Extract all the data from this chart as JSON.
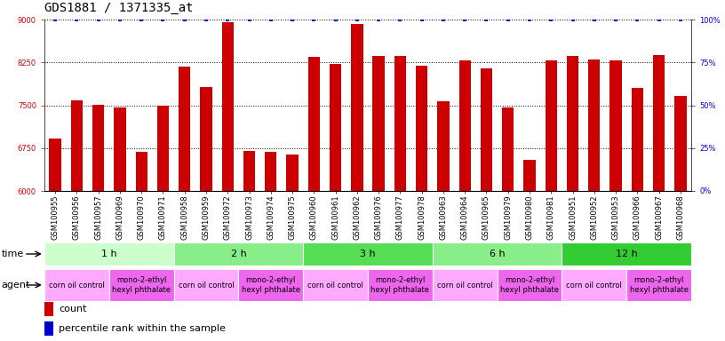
{
  "title": "GDS1881 / 1371335_at",
  "samples": [
    "GSM100955",
    "GSM100956",
    "GSM100957",
    "GSM100969",
    "GSM100970",
    "GSM100971",
    "GSM100958",
    "GSM100959",
    "GSM100972",
    "GSM100973",
    "GSM100974",
    "GSM100975",
    "GSM100960",
    "GSM100961",
    "GSM100962",
    "GSM100976",
    "GSM100977",
    "GSM100978",
    "GSM100963",
    "GSM100964",
    "GSM100965",
    "GSM100979",
    "GSM100980",
    "GSM100981",
    "GSM100951",
    "GSM100952",
    "GSM100953",
    "GSM100966",
    "GSM100967",
    "GSM100968"
  ],
  "values": [
    6920,
    7580,
    7510,
    7460,
    6680,
    7490,
    8170,
    7820,
    8960,
    6700,
    6690,
    6640,
    8350,
    8220,
    8930,
    8370,
    8370,
    8190,
    7570,
    8290,
    8150,
    7460,
    6540,
    8280,
    8360,
    8300,
    8290,
    7810,
    8380,
    7660
  ],
  "percentile_values": [
    100,
    100,
    100,
    100,
    100,
    100,
    100,
    100,
    100,
    100,
    100,
    100,
    100,
    100,
    100,
    100,
    100,
    100,
    100,
    100,
    100,
    100,
    100,
    100,
    100,
    100,
    100,
    100,
    100,
    100
  ],
  "bar_color": "#cc0000",
  "percentile_color": "#0000cc",
  "ylim_left": [
    6000,
    9000
  ],
  "ylim_right": [
    0,
    100
  ],
  "yticks_left": [
    6000,
    6750,
    7500,
    8250,
    9000
  ],
  "yticks_right": [
    0,
    25,
    50,
    75,
    100
  ],
  "time_groups": [
    {
      "label": "1 h",
      "start": 0,
      "end": 6,
      "color": "#ccffcc"
    },
    {
      "label": "2 h",
      "start": 6,
      "end": 12,
      "color": "#88ee88"
    },
    {
      "label": "3 h",
      "start": 12,
      "end": 18,
      "color": "#55dd55"
    },
    {
      "label": "6 h",
      "start": 18,
      "end": 24,
      "color": "#88ee88"
    },
    {
      "label": "12 h",
      "start": 24,
      "end": 30,
      "color": "#33cc33"
    }
  ],
  "agent_groups": [
    {
      "label": "corn oil control",
      "start": 0,
      "end": 3,
      "color": "#ffaaff"
    },
    {
      "label": "mono-2-ethyl\nhexyl phthalate",
      "start": 3,
      "end": 6,
      "color": "#ee66ee"
    },
    {
      "label": "corn oil control",
      "start": 6,
      "end": 9,
      "color": "#ffaaff"
    },
    {
      "label": "mono-2-ethyl\nhexyl phthalate",
      "start": 9,
      "end": 12,
      "color": "#ee66ee"
    },
    {
      "label": "corn oil control",
      "start": 12,
      "end": 15,
      "color": "#ffaaff"
    },
    {
      "label": "mono-2-ethyl\nhexyl phthalate",
      "start": 15,
      "end": 18,
      "color": "#ee66ee"
    },
    {
      "label": "corn oil control",
      "start": 18,
      "end": 21,
      "color": "#ffaaff"
    },
    {
      "label": "mono-2-ethyl\nhexyl phthalate",
      "start": 21,
      "end": 24,
      "color": "#ee66ee"
    },
    {
      "label": "corn oil control",
      "start": 24,
      "end": 27,
      "color": "#ffaaff"
    },
    {
      "label": "mono-2-ethyl\nhexyl phthalate",
      "start": 27,
      "end": 30,
      "color": "#ee66ee"
    }
  ],
  "chart_bg": "#ffffff",
  "title_fontsize": 10,
  "tick_fontsize": 6,
  "label_fontsize": 8,
  "agent_fontsize": 6
}
